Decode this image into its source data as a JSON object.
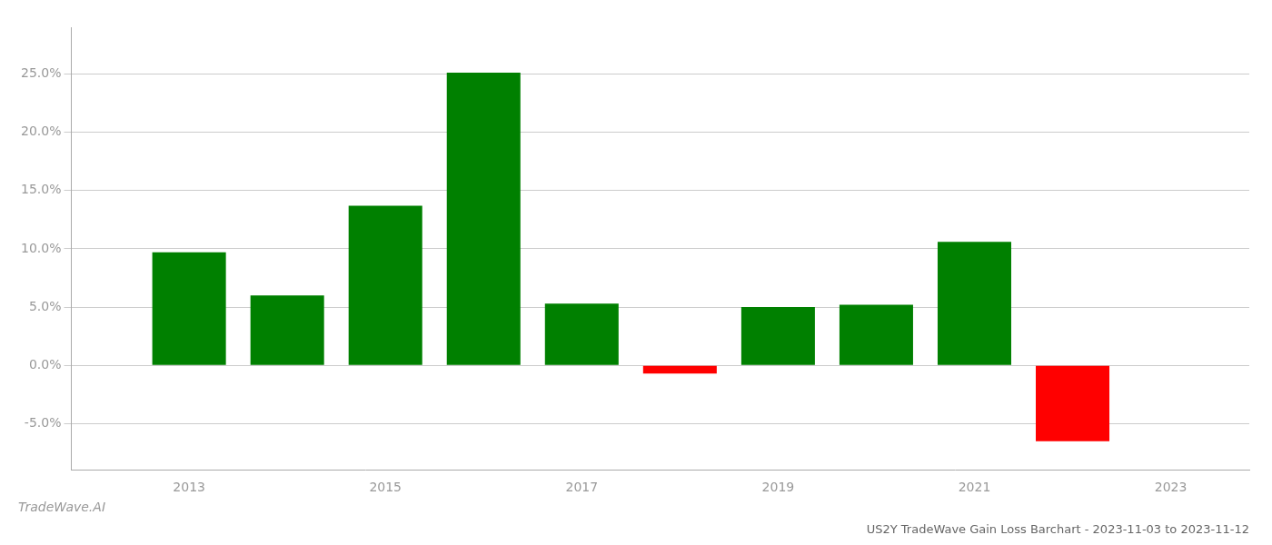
{
  "chart_data": {
    "type": "bar",
    "title": "US2Y TradeWave Gain Loss Barchart - 2023-11-03 to 2023-11-12",
    "annotations": [
      "TradeWave.AI"
    ],
    "x": [
      2013,
      2014,
      2015,
      2016,
      2017,
      2018,
      2019,
      2020,
      2021,
      2022
    ],
    "values": [
      0.097,
      0.06,
      0.137,
      0.251,
      0.053,
      -0.007,
      0.05,
      0.052,
      0.106,
      -0.065
    ],
    "colors": [
      "#008000",
      "#008000",
      "#008000",
      "#008000",
      "#008000",
      "#ff0000",
      "#008000",
      "#008000",
      "#008000",
      "#ff0000"
    ],
    "xlim": [
      2011.8,
      2023.8
    ],
    "xticks": [
      2013,
      2015,
      2017,
      2019,
      2021,
      2023
    ],
    "ylim": [
      -0.09,
      0.29
    ],
    "yticks": [
      {
        "value": -0.05,
        "label": "-5.0%"
      },
      {
        "value": 0.0,
        "label": "0.0%"
      },
      {
        "value": 0.05,
        "label": "5.0%"
      },
      {
        "value": 0.1,
        "label": "10.0%"
      },
      {
        "value": 0.15,
        "label": "15.0%"
      },
      {
        "value": 0.2,
        "label": "20.0%"
      },
      {
        "value": 0.25,
        "label": "25.0%"
      }
    ],
    "grid": true
  }
}
